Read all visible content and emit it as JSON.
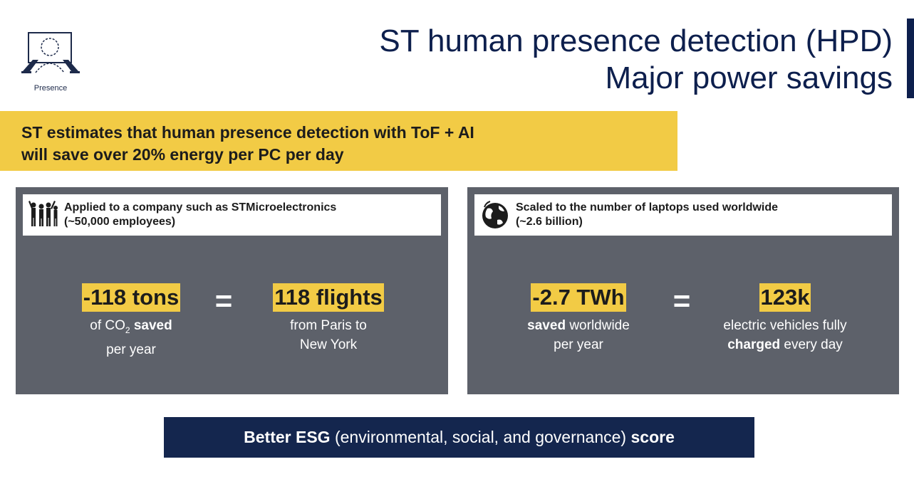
{
  "logo": {
    "label": "Presence",
    "icon": "presence-person-laptop-icon"
  },
  "title": {
    "line1": "ST human presence detection (HPD)",
    "line2": "Major power savings"
  },
  "banner": {
    "line1": "ST estimates that human presence detection with ToF + AI",
    "line2": "will save over 20% energy per PC per day"
  },
  "left_panel": {
    "icon": "people-group-icon",
    "header_line1": "Applied to a company such as STMicroelectronics",
    "header_line2": "(~50,000 employees)",
    "stat1": {
      "value": "-118 tons",
      "desc_pre": "of CO",
      "desc_sub": "2",
      "desc_bold": "saved",
      "desc_line2": "per year"
    },
    "equals": "=",
    "stat2": {
      "value": "118 flights",
      "desc_line1": "from Paris to",
      "desc_line2": "New York"
    }
  },
  "right_panel": {
    "icon": "globe-icon",
    "header_line1": "Scaled to the number of laptops used worldwide",
    "header_line2": "(~2.6 billion)",
    "stat1": {
      "value": "-2.7 TWh",
      "desc_bold": "saved",
      "desc_rest": " worldwide",
      "desc_line2": "per year"
    },
    "equals": "=",
    "stat2": {
      "value": "123k",
      "desc_line1": "electric vehicles fully",
      "desc_bold": "charged",
      "desc_rest": " every day"
    }
  },
  "esg": {
    "bold1": "Better ESG",
    "middle": " (environmental, social, and governance) ",
    "bold2": "score"
  },
  "colors": {
    "navy": "#0d1f4d",
    "yellow": "#f2cb45",
    "panel_gray": "#5d616a",
    "esg_navy": "#14264e"
  }
}
